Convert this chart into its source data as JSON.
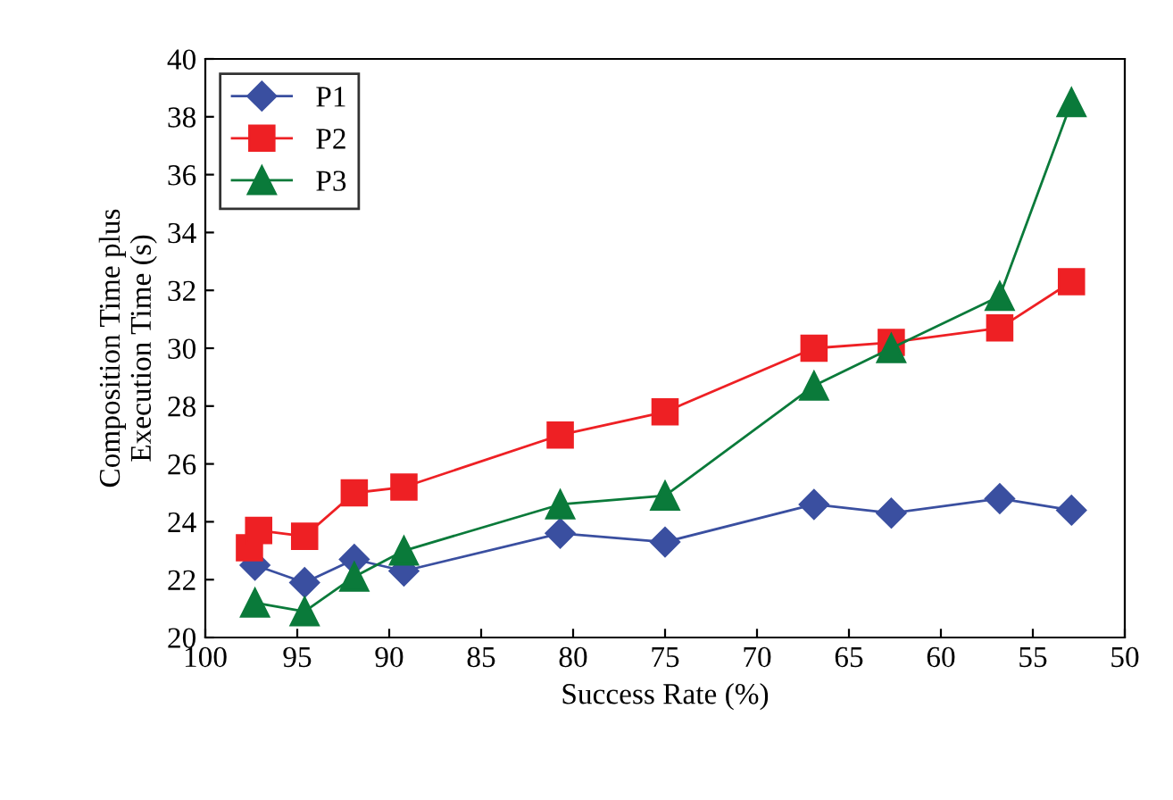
{
  "chart_data": {
    "type": "line",
    "xlabel": "Success Rate (%)",
    "ylabel": "Composition Time plus\nExecution Time (s)",
    "xlim": [
      100,
      50
    ],
    "xticks": [
      100,
      95,
      90,
      85,
      80,
      75,
      70,
      65,
      60,
      55,
      50
    ],
    "ylim": [
      20,
      40
    ],
    "yticks": [
      20,
      22,
      24,
      26,
      28,
      30,
      32,
      34,
      36,
      38,
      40
    ],
    "grid": false,
    "legend": "top left",
    "series": [
      {
        "name": "P1",
        "color": "#3a4fa0",
        "marker": "diamond",
        "x": [
          97.3,
          94.6,
          91.9,
          89.2,
          80.7,
          75.0,
          66.9,
          62.7,
          56.8,
          52.9
        ],
        "values": [
          22.5,
          21.9,
          22.7,
          22.3,
          23.6,
          23.3,
          24.6,
          24.3,
          24.8,
          24.4
        ]
      },
      {
        "name": "P2",
        "color": "#ee2024",
        "marker": "square",
        "x": [
          97.6,
          97.1,
          94.6,
          91.9,
          89.2,
          80.7,
          75.0,
          66.9,
          62.7,
          56.8,
          52.9
        ],
        "values": [
          23.1,
          23.7,
          23.5,
          25.0,
          25.2,
          27.0,
          27.8,
          30.0,
          30.2,
          30.7,
          32.3
        ]
      },
      {
        "name": "P3",
        "color": "#0a7a3a",
        "marker": "triangle",
        "x": [
          97.3,
          94.6,
          91.9,
          89.2,
          80.7,
          75.0,
          66.9,
          62.7,
          56.8,
          52.9
        ],
        "values": [
          21.2,
          20.9,
          22.1,
          23.0,
          24.6,
          24.9,
          28.7,
          30.0,
          31.8,
          38.5
        ]
      }
    ]
  }
}
